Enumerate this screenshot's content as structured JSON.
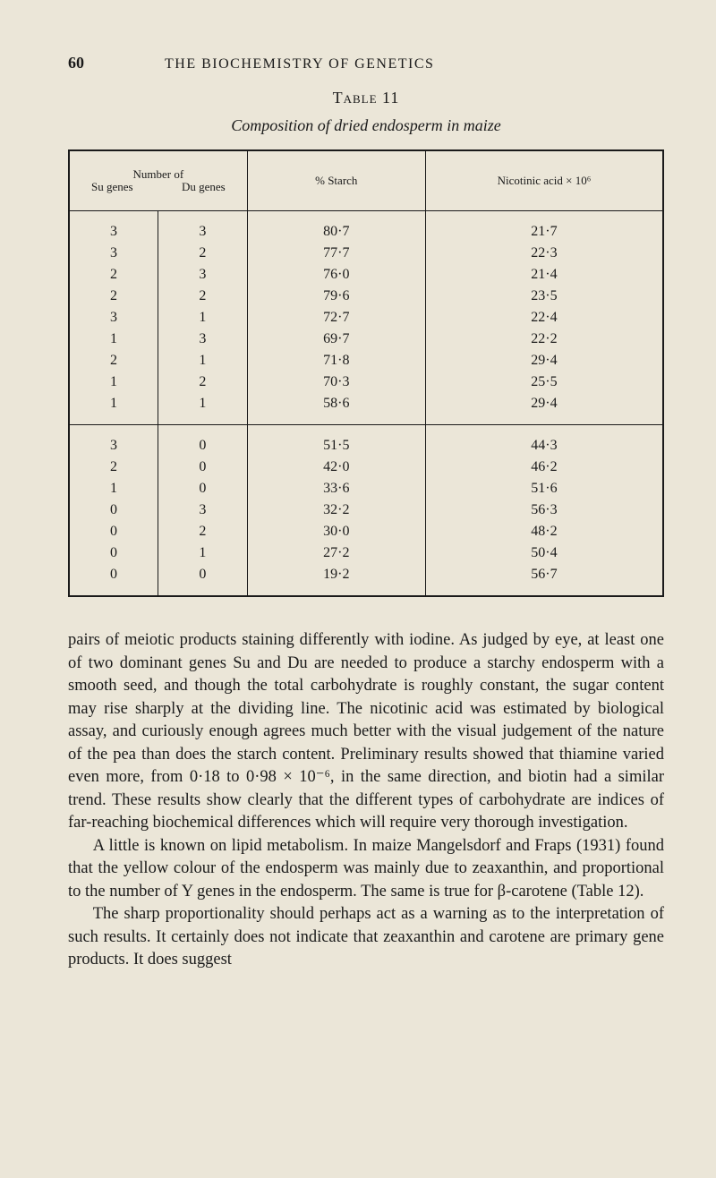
{
  "page": {
    "number": "60",
    "running_head": "THE BIOCHEMISTRY OF GENETICS"
  },
  "table": {
    "label": "Table 11",
    "caption": "Composition of dried endosperm in maize",
    "headers": {
      "number_of": "Number of",
      "su": "Su genes",
      "du": "Du genes",
      "starch": "% Starch",
      "nicotinic": "Nicotinic acid × 10⁶"
    },
    "section1": [
      {
        "su": "3",
        "du": "3",
        "starch": "80·7",
        "nic": "21·7"
      },
      {
        "su": "3",
        "du": "2",
        "starch": "77·7",
        "nic": "22·3"
      },
      {
        "su": "2",
        "du": "3",
        "starch": "76·0",
        "nic": "21·4"
      },
      {
        "su": "2",
        "du": "2",
        "starch": "79·6",
        "nic": "23·5"
      },
      {
        "su": "3",
        "du": "1",
        "starch": "72·7",
        "nic": "22·4"
      },
      {
        "su": "1",
        "du": "3",
        "starch": "69·7",
        "nic": "22·2"
      },
      {
        "su": "2",
        "du": "1",
        "starch": "71·8",
        "nic": "29·4"
      },
      {
        "su": "1",
        "du": "2",
        "starch": "70·3",
        "nic": "25·5"
      },
      {
        "su": "1",
        "du": "1",
        "starch": "58·6",
        "nic": "29·4"
      }
    ],
    "section2": [
      {
        "su": "3",
        "du": "0",
        "starch": "51·5",
        "nic": "44·3"
      },
      {
        "su": "2",
        "du": "0",
        "starch": "42·0",
        "nic": "46·2"
      },
      {
        "su": "1",
        "du": "0",
        "starch": "33·6",
        "nic": "51·6"
      },
      {
        "su": "0",
        "du": "3",
        "starch": "32·2",
        "nic": "56·3"
      },
      {
        "su": "0",
        "du": "2",
        "starch": "30·0",
        "nic": "48·2"
      },
      {
        "su": "0",
        "du": "1",
        "starch": "27·2",
        "nic": "50·4"
      },
      {
        "su": "0",
        "du": "0",
        "starch": "19·2",
        "nic": "56·7"
      }
    ]
  },
  "paragraphs": {
    "p1": "pairs of meiotic products staining differently with iodine. As judged by eye, at least one of two dominant genes Su and Du are needed to produce a starchy endosperm with a smooth seed, and though the total carbohydrate is roughly constant, the sugar content may rise sharply at the dividing line. The nicotinic acid was estimated by biological assay, and curiously enough agrees much better with the visual judgement of the nature of the pea than does the starch content. Preliminary results showed that thiamine varied even more, from 0·18 to 0·98 × 10⁻⁶, in the same direction, and biotin had a similar trend. These results show clearly that the different types of carbohydrate are indices of far-reaching biochemical differences which will require very thorough investigation.",
    "p2": "A little is known on lipid metabolism. In maize Mangelsdorf and Fraps (1931) found that the yellow colour of the endosperm was mainly due to zeaxanthin, and proportional to the number of Y genes in the endosperm. The same is true for β-carotene (Table 12).",
    "p3": "The sharp proportionality should perhaps act as a warning as to the interpretation of such results. It certainly does not indicate that zeaxanthin and carotene are primary gene products. It does suggest"
  }
}
